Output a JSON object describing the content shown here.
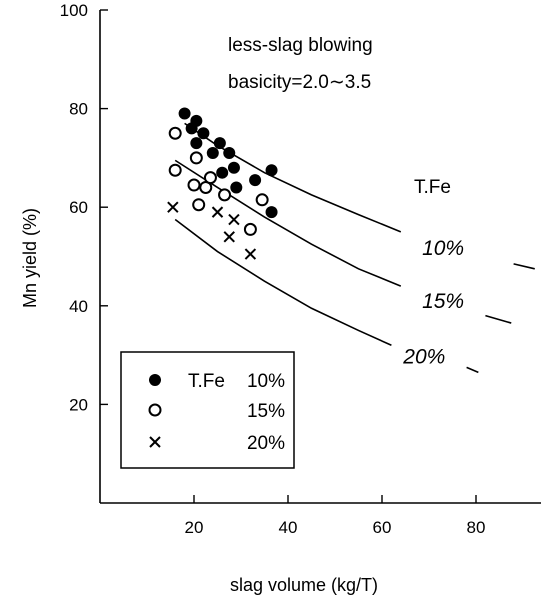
{
  "chart_data": {
    "type": "scatter",
    "title": "",
    "xlabel": "slag volume (kg/T)",
    "ylabel": "Mn yield (%)",
    "xlim": [
      0,
      95
    ],
    "ylim": [
      0,
      100
    ],
    "x_ticks": [
      20,
      40,
      60,
      80
    ],
    "y_ticks": [
      20,
      40,
      60,
      80,
      100
    ],
    "x_tick_labels": [
      "20",
      "40",
      "60",
      "80"
    ],
    "y_tick_labels": [
      "20",
      "40",
      "60",
      "80",
      "100"
    ],
    "grid": false,
    "annotations": {
      "line1": "less-slag blowing",
      "line2": "basicity=2.0∼3.5",
      "curve_group_title": "T.Fe"
    },
    "legend": {
      "placement": "bottom-left",
      "title": "T.Fe",
      "entries": [
        "10%",
        "15%",
        "20%"
      ]
    },
    "series": [
      {
        "name": "10%",
        "marker": "filled-circle",
        "points": [
          [
            18,
            79
          ],
          [
            19.5,
            76
          ],
          [
            20.5,
            77.5
          ],
          [
            20.5,
            73
          ],
          [
            22,
            75
          ],
          [
            24,
            71
          ],
          [
            25.5,
            73
          ],
          [
            26,
            67
          ],
          [
            27.5,
            71
          ],
          [
            28.5,
            68
          ],
          [
            29,
            64
          ],
          [
            33,
            65.5
          ],
          [
            36.5,
            67.5
          ],
          [
            36.5,
            59
          ]
        ]
      },
      {
        "name": "15%",
        "marker": "open-circle",
        "points": [
          [
            16,
            75
          ],
          [
            16,
            67.5
          ],
          [
            20,
            64.5
          ],
          [
            20.5,
            70
          ],
          [
            21,
            60.5
          ],
          [
            22.5,
            64
          ],
          [
            23.5,
            66
          ],
          [
            26.5,
            62.5
          ],
          [
            32,
            55.5
          ],
          [
            34.5,
            61.5
          ]
        ]
      },
      {
        "name": "20%",
        "marker": "cross",
        "points": [
          [
            15.5,
            60
          ],
          [
            25,
            59
          ],
          [
            27.5,
            54
          ],
          [
            28.5,
            57.5
          ],
          [
            32,
            50.5
          ]
        ]
      }
    ],
    "curves": [
      {
        "name": "10%",
        "label": "10%",
        "points": [
          [
            18,
            77
          ],
          [
            25,
            72.5
          ],
          [
            35,
            67
          ],
          [
            45,
            62.5
          ],
          [
            55,
            58.5
          ],
          [
            64,
            55
          ],
          [
            88,
            48.5
          ],
          [
            92.5,
            47.5
          ]
        ],
        "gap_x": [
          64,
          82
        ]
      },
      {
        "name": "15%",
        "label": "15%",
        "points": [
          [
            16,
            69.5
          ],
          [
            25,
            64
          ],
          [
            35,
            58
          ],
          [
            45,
            52.5
          ],
          [
            55,
            47.5
          ],
          [
            64,
            44
          ],
          [
            82,
            38
          ],
          [
            87.5,
            36.5
          ]
        ],
        "gap_x": [
          64,
          82
        ]
      },
      {
        "name": "20%",
        "label": "20%",
        "points": [
          [
            16,
            57.5
          ],
          [
            25,
            51
          ],
          [
            35,
            45
          ],
          [
            45,
            39.5
          ],
          [
            55,
            35
          ],
          [
            62,
            32
          ],
          [
            78,
            27.5
          ],
          [
            80.5,
            26.5
          ]
        ],
        "gap_x": [
          62,
          76
        ]
      }
    ]
  }
}
